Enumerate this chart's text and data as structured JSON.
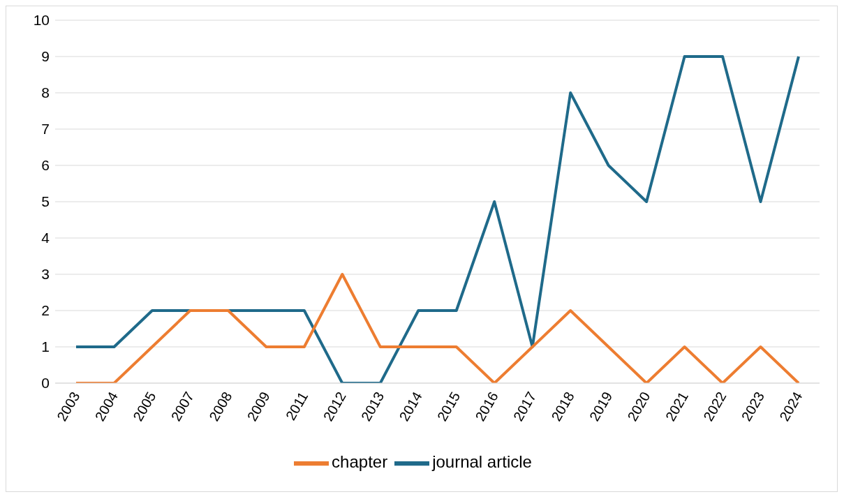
{
  "chart_data": {
    "type": "line",
    "categories": [
      "2003",
      "2004",
      "2005",
      "2007",
      "2008",
      "2009",
      "2011",
      "2012",
      "2013",
      "2014",
      "2015",
      "2016",
      "2017",
      "2018",
      "2019",
      "2020",
      "2021",
      "2022",
      "2023",
      "2024"
    ],
    "series": [
      {
        "name": "journal article",
        "color": "#1f6a8a",
        "values": [
          1,
          1,
          2,
          2,
          2,
          2,
          2,
          0,
          0,
          2,
          2,
          5,
          1,
          8,
          6,
          5,
          9,
          9,
          5,
          9
        ]
      },
      {
        "name": "chapter",
        "color": "#ed7d31",
        "values": [
          0,
          0,
          1,
          2,
          2,
          1,
          1,
          3,
          1,
          1,
          1,
          0,
          1,
          2,
          1,
          0,
          1,
          0,
          1,
          0
        ]
      }
    ],
    "ylim": [
      0,
      10
    ],
    "yticks": [
      0,
      1,
      2,
      3,
      4,
      5,
      6,
      7,
      8,
      9,
      10
    ],
    "grid": "y",
    "legend": "bottom",
    "marker": "none",
    "line_style": "solid"
  }
}
